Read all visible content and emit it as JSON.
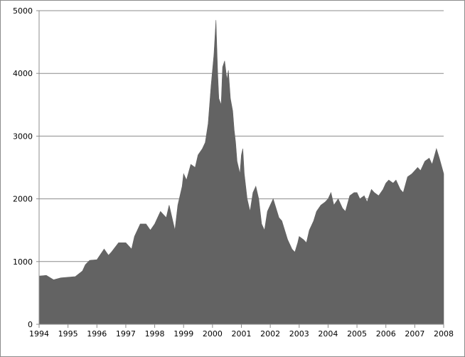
{
  "chart_data": {
    "type": "area",
    "title": "",
    "xlabel": "",
    "ylabel": "",
    "xlim": [
      1994,
      2008
    ],
    "ylim": [
      0,
      5000
    ],
    "grid": "horizontal",
    "x_ticks": [
      "1994",
      "1995",
      "1996",
      "1997",
      "1998",
      "1999",
      "2000",
      "2001",
      "2002",
      "2003",
      "2004",
      "2005",
      "2006",
      "2007",
      "2008"
    ],
    "y_ticks": [
      "0",
      "1000",
      "2000",
      "3000",
      "4000",
      "5000"
    ],
    "series": [
      {
        "x": [
          1994.0,
          1994.25,
          1994.5,
          1994.75,
          1995.0,
          1995.25,
          1995.5,
          1995.6,
          1995.75,
          1996.0,
          1996.25,
          1996.4,
          1996.5,
          1996.75,
          1997.0,
          1997.2,
          1997.3,
          1997.5,
          1997.7,
          1997.85,
          1998.0,
          1998.2,
          1998.4,
          1998.5,
          1998.6,
          1998.7,
          1998.8,
          1998.95,
          1999.0,
          1999.1,
          1999.25,
          1999.4,
          1999.5,
          1999.65,
          1999.75,
          1999.85,
          1999.95,
          2000.05,
          2000.12,
          2000.18,
          2000.22,
          2000.3,
          2000.35,
          2000.42,
          2000.5,
          2000.55,
          2000.62,
          2000.7,
          2000.75,
          2000.8,
          2000.85,
          2000.9,
          2000.95,
          2001.0,
          2001.05,
          2001.1,
          2001.2,
          2001.3,
          2001.4,
          2001.5,
          2001.6,
          2001.7,
          2001.8,
          2001.9,
          2002.0,
          2002.1,
          2002.2,
          2002.3,
          2002.4,
          2002.5,
          2002.6,
          2002.75,
          2002.85,
          2002.95,
          2003.0,
          2003.15,
          2003.25,
          2003.35,
          2003.5,
          2003.6,
          2003.75,
          2003.9,
          2004.0,
          2004.1,
          2004.2,
          2004.35,
          2004.5,
          2004.6,
          2004.75,
          2004.9,
          2005.0,
          2005.1,
          2005.25,
          2005.35,
          2005.5,
          2005.6,
          2005.75,
          2005.9,
          2006.0,
          2006.1,
          2006.25,
          2006.35,
          2006.5,
          2006.6,
          2006.75,
          2006.9,
          2007.0,
          2007.1,
          2007.2,
          2007.35,
          2007.5,
          2007.6,
          2007.75,
          2007.85,
          2008.0
        ],
        "values": [
          770,
          780,
          710,
          740,
          750,
          760,
          850,
          950,
          1020,
          1030,
          1200,
          1100,
          1150,
          1300,
          1300,
          1200,
          1400,
          1600,
          1600,
          1500,
          1600,
          1800,
          1700,
          1900,
          1700,
          1500,
          1900,
          2200,
          2400,
          2300,
          2550,
          2500,
          2700,
          2800,
          2900,
          3200,
          3800,
          4300,
          4850,
          4000,
          3600,
          3500,
          4100,
          4200,
          3900,
          4050,
          3600,
          3400,
          3100,
          2900,
          2600,
          2500,
          2400,
          2700,
          2800,
          2400,
          2000,
          1800,
          2100,
          2200,
          2000,
          1600,
          1500,
          1800,
          1900,
          2000,
          1850,
          1700,
          1650,
          1500,
          1350,
          1200,
          1150,
          1300,
          1400,
          1350,
          1300,
          1500,
          1650,
          1800,
          1900,
          1950,
          2000,
          2100,
          1900,
          2000,
          1850,
          1800,
          2050,
          2100,
          2100,
          2000,
          2050,
          1950,
          2150,
          2100,
          2050,
          2150,
          2250,
          2300,
          2250,
          2300,
          2150,
          2100,
          2350,
          2400,
          2450,
          2500,
          2450,
          2600,
          2650,
          2550,
          2800,
          2650,
          2400
        ]
      }
    ]
  }
}
